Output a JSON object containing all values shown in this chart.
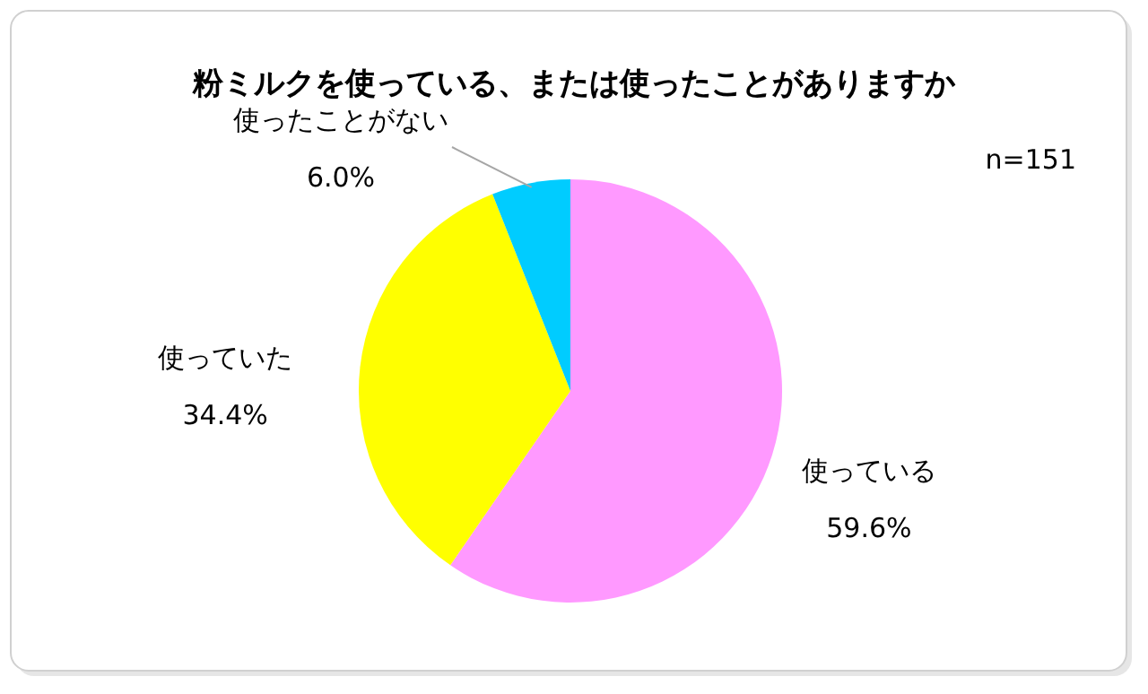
{
  "chart_data": {
    "type": "pie",
    "title": "粉ミルクを使っている、または使ったことがありますか",
    "categories": [
      "使っている",
      "使っていた",
      "使ったことがない"
    ],
    "values": [
      59.6,
      34.4,
      6.0
    ],
    "value_labels": [
      "59.6%",
      "34.4%",
      "6.0%"
    ],
    "colors": [
      "#ff99ff",
      "#ffff00",
      "#00ccff"
    ],
    "annotations": [
      "n=151"
    ]
  }
}
